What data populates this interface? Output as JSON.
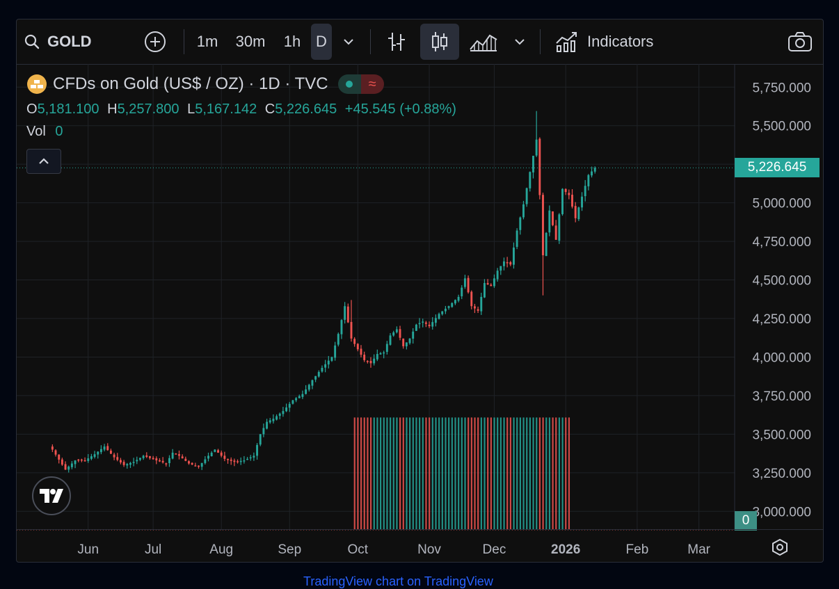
{
  "toolbar": {
    "symbol": "GOLD",
    "intervals": [
      "1m",
      "30m",
      "1h",
      "D"
    ],
    "indicators_label": "Indicators"
  },
  "legend": {
    "title": "CFDs on Gold (US$ / OZ) · 1D · TVC",
    "open_key": "O",
    "open": "5,181.100",
    "high_key": "H",
    "high": "5,257.800",
    "low_key": "L",
    "low": "5,167.142",
    "close_key": "C",
    "close": "5,226.645",
    "change": "+45.545 (+0.88%)",
    "vol_label": "Vol",
    "vol_value": "0"
  },
  "price_tag": "5,226.645",
  "vol_tag": "0",
  "watermark": "TradingView chart on TradingView",
  "colors": {
    "up": "#26a69a",
    "down": "#ef5350",
    "bg": "#0f0f0f",
    "grid": "#1f2227"
  },
  "chart_data": {
    "type": "candlestick",
    "title": "CFDs on Gold (US$ / OZ) · 1D · TVC",
    "y_ticks": [
      "5,750.000",
      "5,500.000",
      "5,250.000",
      "5,000.000",
      "4,750.000",
      "4,500.000",
      "4,250.000",
      "4,000.000",
      "3,750.000",
      "3,500.000",
      "3,250.000",
      "3,000.000"
    ],
    "y_tick_values": [
      5750,
      5500,
      5250,
      5000,
      4750,
      4500,
      4250,
      4000,
      3750,
      3500,
      3250,
      3000
    ],
    "ylim": [
      2875,
      5900
    ],
    "x_ticks": [
      "Jun",
      "Jul",
      "Aug",
      "Sep",
      "Oct",
      "Nov",
      "Dec",
      "2026",
      "Feb",
      "Mar"
    ],
    "x_tick_positions": [
      11,
      31,
      52,
      73,
      94,
      116,
      136,
      158,
      180,
      199
    ],
    "x_range": [
      -11,
      210
    ],
    "last_price": 5226.645,
    "anchors": [
      [
        0,
        3400
      ],
      [
        4,
        3270
      ],
      [
        7,
        3330
      ],
      [
        10,
        3330
      ],
      [
        13,
        3370
      ],
      [
        16,
        3420
      ],
      [
        19,
        3350
      ],
      [
        22,
        3300
      ],
      [
        25,
        3320
      ],
      [
        28,
        3360
      ],
      [
        32,
        3330
      ],
      [
        35,
        3310
      ],
      [
        37,
        3380
      ],
      [
        39,
        3360
      ],
      [
        42,
        3310
      ],
      [
        45,
        3290
      ],
      [
        48,
        3360
      ],
      [
        50,
        3400
      ],
      [
        53,
        3340
      ],
      [
        56,
        3320
      ],
      [
        59,
        3330
      ],
      [
        62,
        3360
      ],
      [
        64,
        3500
      ],
      [
        66,
        3580
      ],
      [
        68,
        3600
      ],
      [
        71,
        3650
      ],
      [
        74,
        3720
      ],
      [
        77,
        3760
      ],
      [
        80,
        3850
      ],
      [
        83,
        3930
      ],
      [
        86,
        4000
      ],
      [
        88,
        4150
      ],
      [
        90,
        4330
      ],
      [
        92,
        4120
      ],
      [
        94,
        4050
      ],
      [
        96,
        3980
      ],
      [
        98,
        3960
      ],
      [
        100,
        4020
      ],
      [
        102,
        4030
      ],
      [
        104,
        4140
      ],
      [
        106,
        4180
      ],
      [
        108,
        4070
      ],
      [
        110,
        4120
      ],
      [
        112,
        4210
      ],
      [
        114,
        4230
      ],
      [
        116,
        4200
      ],
      [
        119,
        4280
      ],
      [
        122,
        4330
      ],
      [
        125,
        4390
      ],
      [
        127,
        4510
      ],
      [
        129,
        4330
      ],
      [
        131,
        4300
      ],
      [
        133,
        4480
      ],
      [
        135,
        4460
      ],
      [
        137,
        4560
      ],
      [
        139,
        4620
      ],
      [
        141,
        4600
      ],
      [
        143,
        4820
      ],
      [
        145,
        4990
      ],
      [
        147,
        5200
      ],
      [
        149,
        5410
      ],
      [
        150,
        5050
      ],
      [
        151,
        4660
      ],
      [
        153,
        4950
      ],
      [
        155,
        4760
      ],
      [
        157,
        5090
      ],
      [
        159,
        5050
      ],
      [
        161,
        4900
      ],
      [
        163,
        5040
      ],
      [
        165,
        5180
      ],
      [
        167,
        5226.645
      ]
    ],
    "volume": {
      "value": "0",
      "start_index": 93,
      "end_index": 159,
      "level": 1.0
    }
  }
}
